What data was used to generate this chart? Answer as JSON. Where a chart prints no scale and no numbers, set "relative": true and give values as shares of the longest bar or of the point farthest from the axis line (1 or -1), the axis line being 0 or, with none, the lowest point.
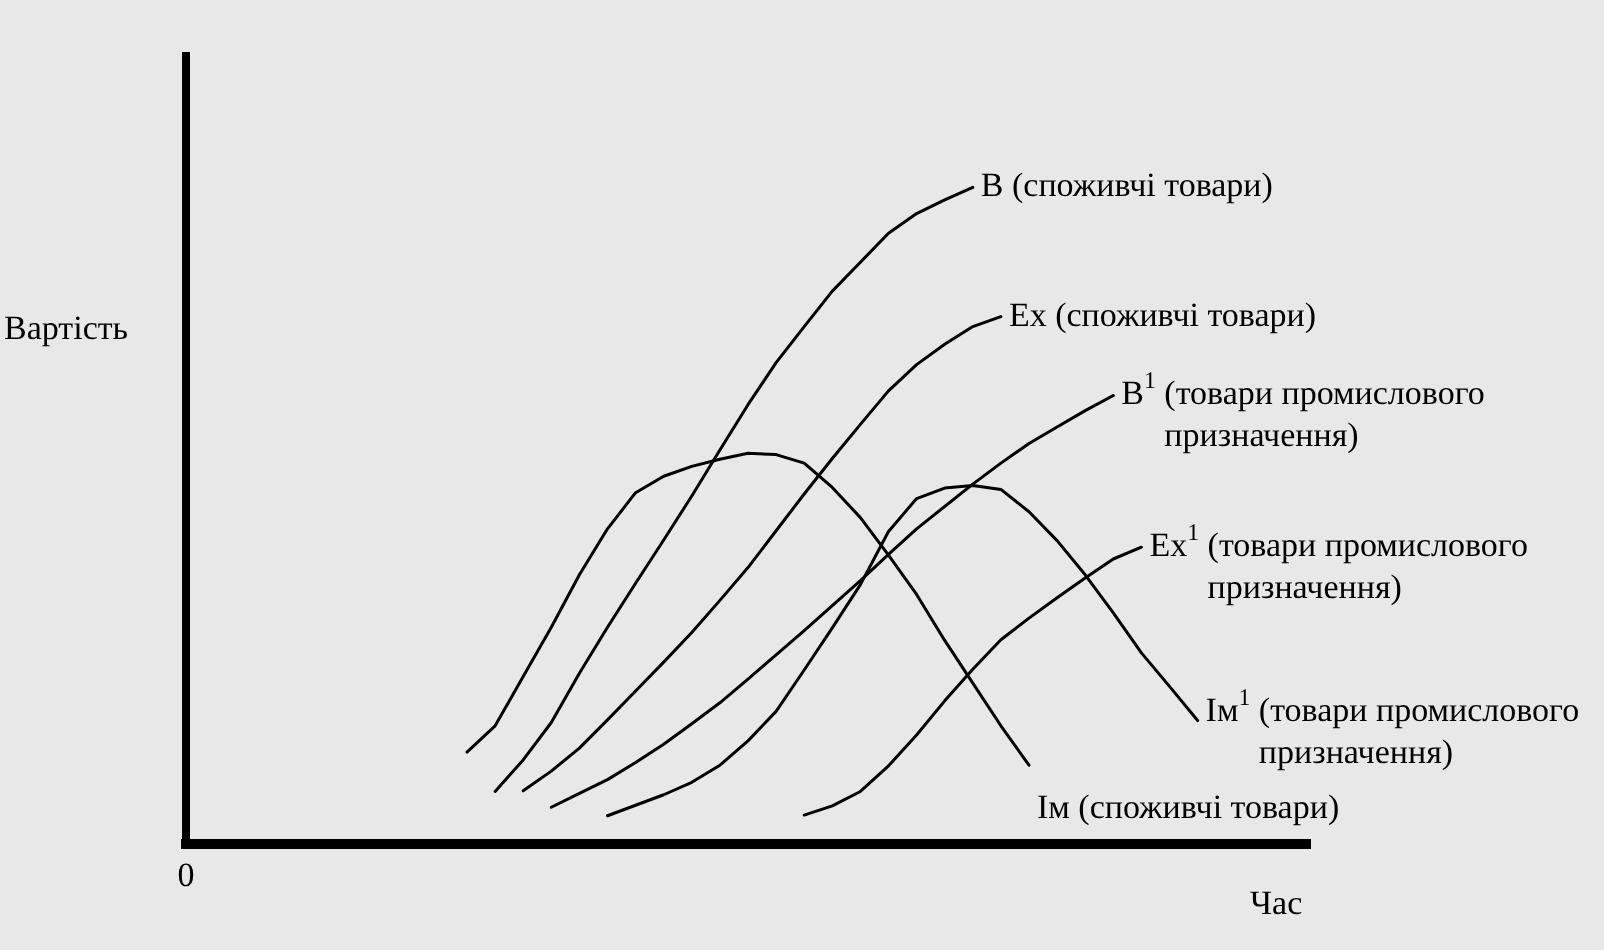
{
  "chart_data": {
    "type": "line",
    "relative": true,
    "xlabel": "Час",
    "ylabel": "Вартість",
    "annotations": [
      "0"
    ],
    "tick_labels": false,
    "marker": "none",
    "categories": [
      null,
      null,
      null,
      null,
      null,
      null,
      null,
      null,
      null,
      null,
      null,
      null,
      null,
      null,
      null,
      null,
      null,
      null,
      null,
      null,
      null,
      null,
      null,
      null,
      null,
      null,
      null,
      null,
      null,
      null,
      null,
      null,
      null,
      null,
      null,
      null,
      null,
      null,
      null,
      null,
      null
    ],
    "series": [
      {
        "name": "B (споживчі товари)",
        "color": "#000000",
        "values": [
          null,
          null,
          null,
          null,
          null,
          null,
          null,
          null,
          null,
          null,
          null,
          0.08,
          0.128,
          0.185,
          0.26,
          0.33,
          0.397,
          0.463,
          0.53,
          0.6,
          0.669,
          0.733,
          0.788,
          0.842,
          0.886,
          0.93,
          0.96,
          0.981,
          1,
          null,
          null,
          null,
          null,
          null,
          null,
          null,
          null,
          null,
          null,
          null,
          null
        ]
      },
      {
        "name": "Ex (споживчі товари)",
        "color": "#000000",
        "values": [
          null,
          null,
          null,
          null,
          null,
          null,
          null,
          null,
          null,
          null,
          null,
          null,
          0.081,
          0.111,
          0.146,
          0.189,
          0.233,
          0.277,
          0.322,
          0.371,
          0.421,
          0.477,
          0.533,
          0.587,
          0.639,
          0.69,
          0.73,
          0.761,
          0.788,
          0.803,
          null,
          null,
          null,
          null,
          null,
          null,
          null,
          null,
          null,
          null,
          null
        ]
      },
      {
        "name": "B$^{1}$ (товари промислового призначення)",
        "color": "#000000",
        "values": [
          null,
          null,
          null,
          null,
          null,
          null,
          null,
          null,
          null,
          null,
          null,
          null,
          null,
          0.056,
          0.077,
          0.098,
          0.124,
          0.152,
          0.183,
          0.215,
          0.251,
          0.288,
          0.325,
          0.363,
          0.401,
          0.441,
          0.48,
          0.514,
          0.548,
          0.58,
          0.61,
          0.635,
          0.66,
          0.683,
          null,
          null,
          null,
          null,
          null,
          null,
          null
        ]
      },
      {
        "name": "Ex$^{1}$ (товари промислового призначення)",
        "color": "#000000",
        "values": [
          null,
          null,
          null,
          null,
          null,
          null,
          null,
          null,
          null,
          null,
          null,
          null,
          null,
          null,
          null,
          null,
          null,
          null,
          null,
          null,
          null,
          null,
          0.044,
          0.058,
          0.08,
          0.119,
          0.166,
          0.218,
          0.266,
          0.311,
          0.344,
          0.375,
          0.405,
          0.434,
          0.452,
          null,
          null,
          null,
          null,
          null,
          null
        ]
      },
      {
        "name": "Iм$^{1}$ (товари промислового призначення)",
        "color": "#000000",
        "values": [
          null,
          null,
          null,
          null,
          null,
          null,
          null,
          null,
          null,
          null,
          null,
          null,
          null,
          null,
          null,
          0.043,
          0.059,
          0.075,
          0.094,
          0.12,
          0.157,
          0.202,
          0.265,
          0.329,
          0.395,
          0.476,
          0.526,
          0.542,
          0.546,
          0.54,
          0.506,
          0.462,
          0.41,
          0.352,
          0.291,
          0.24,
          0.188,
          null,
          null,
          null,
          null
        ]
      },
      {
        "name": "Iм (споживчі товари)",
        "color": "#000000",
        "values": [
          null,
          null,
          null,
          null,
          null,
          null,
          null,
          null,
          null,
          null,
          0.14,
          0.18,
          0.255,
          0.33,
          0.41,
          0.48,
          0.535,
          0.56,
          0.575,
          0.586,
          0.595,
          0.593,
          0.58,
          0.543,
          0.497,
          0.44,
          0.38,
          0.31,
          0.245,
          0.18,
          0.12,
          null,
          null,
          null,
          null,
          null,
          null,
          null,
          null,
          null,
          null
        ]
      }
    ]
  }
}
